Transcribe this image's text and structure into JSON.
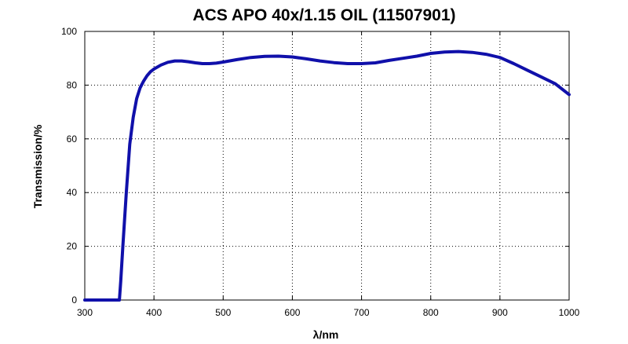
{
  "chart_data": {
    "type": "line",
    "title": "ACS APO 40x/1.15 OIL (11507901)",
    "xlabel": "λ/nm",
    "ylabel": "Transmission/%",
    "xlim": [
      300,
      1000
    ],
    "ylim": [
      0,
      100
    ],
    "xticks": [
      300,
      400,
      500,
      600,
      700,
      800,
      900,
      1000
    ],
    "yticks": [
      0,
      20,
      40,
      60,
      80,
      100
    ],
    "grid": true,
    "colors": {
      "line": "#1010aa",
      "axes": "#000000"
    },
    "series": [
      {
        "x": [
          300,
          350,
          352,
          355,
          360,
          365,
          370,
          375,
          380,
          385,
          390,
          395,
          400,
          410,
          420,
          430,
          440,
          450,
          460,
          470,
          480,
          490,
          500,
          520,
          540,
          560,
          580,
          600,
          620,
          640,
          660,
          680,
          700,
          720,
          740,
          760,
          780,
          800,
          820,
          840,
          860,
          880,
          900,
          920,
          940,
          960,
          980,
          1000
        ],
        "y": [
          0,
          0,
          7,
          20,
          40,
          58,
          68,
          75,
          79,
          81.5,
          83.5,
          85,
          86,
          87.5,
          88.5,
          89,
          89,
          88.7,
          88.3,
          88,
          88,
          88.2,
          88.6,
          89.5,
          90.3,
          90.7,
          90.8,
          90.5,
          89.8,
          89,
          88.4,
          88,
          88,
          88.3,
          89.2,
          90,
          90.8,
          91.8,
          92.3,
          92.5,
          92.2,
          91.5,
          90.3,
          88,
          85.5,
          83,
          80.5,
          76.5
        ]
      }
    ]
  }
}
